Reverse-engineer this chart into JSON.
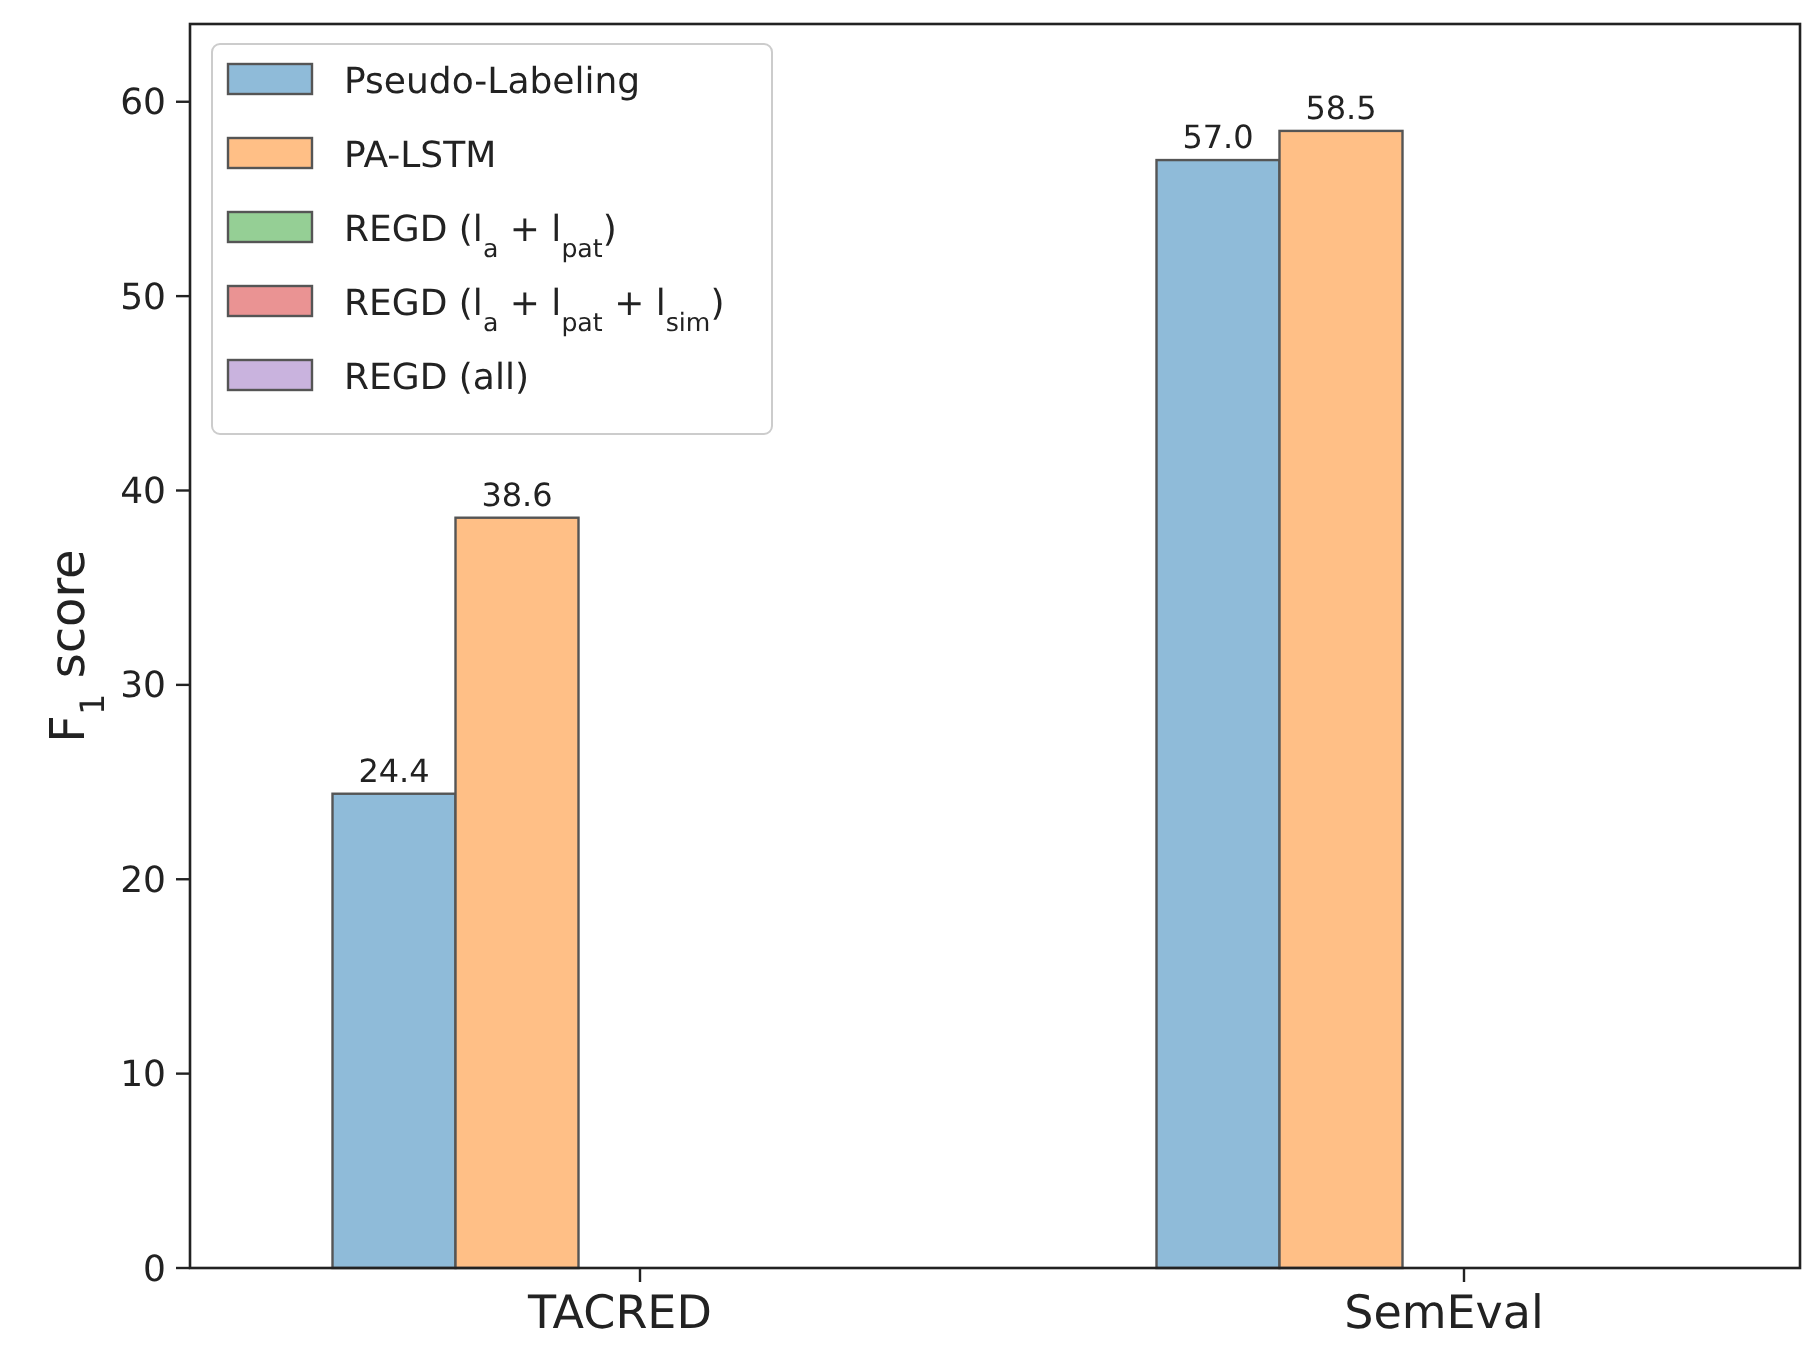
{
  "chart_data": {
    "type": "bar",
    "ylabel": "F$_{1}$ score",
    "categories": [
      "TACRED",
      "SemEval"
    ],
    "series": [
      {
        "name": "Pseudo-Labeling",
        "color": "#8fbbd9",
        "values": [
          24.4,
          57.0
        ],
        "value_labels": [
          "24.4",
          "57.0"
        ]
      },
      {
        "name": "PA-LSTM",
        "color": "#ffbf86",
        "values": [
          38.6,
          58.5
        ],
        "value_labels": [
          "38.6",
          "58.5"
        ]
      },
      {
        "name": "REGD (l$_{a}$ + l$_{pat}$)",
        "color": "#95cf95",
        "values": [
          null,
          null
        ]
      },
      {
        "name": "REGD (l$_{a}$ + l$_{pat}$ + l$_{sim}$)",
        "color": "#ea9393",
        "values": [
          null,
          null
        ]
      },
      {
        "name": "REGD (all)",
        "color": "#c9b3de",
        "values": [
          null,
          null
        ]
      }
    ],
    "ylim": [
      0,
      64
    ],
    "yticks": [
      0,
      10,
      20,
      30,
      40,
      50,
      60
    ],
    "legend": "top left"
  }
}
